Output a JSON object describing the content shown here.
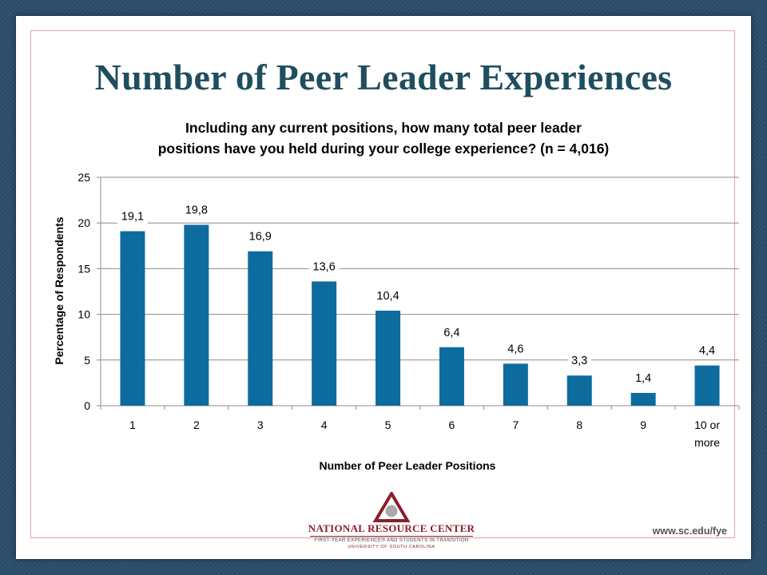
{
  "page": {
    "title": "Number of Peer Leader Experiences",
    "footer_url": "www.sc.edu/fye"
  },
  "logo": {
    "name": "NATIONAL RESOURCE CENTER",
    "subtitle": "FIRST-YEAR EXPERIENCE® AND STUDENTS IN TRANSITION",
    "institution": "UNIVERSITY OF SOUTH CAROLINA",
    "colors": {
      "triangle": "#8a1f2a",
      "circle": "#a9a9a9"
    }
  },
  "chart_data": {
    "type": "bar",
    "title_lines": [
      "Including any current positions, how many total peer leader",
      "positions have you held during your college experience? (n = 4,016)"
    ],
    "categories": [
      "1",
      "2",
      "3",
      "4",
      "5",
      "6",
      "7",
      "8",
      "9",
      "10 or more"
    ],
    "values": [
      19.1,
      19.8,
      16.9,
      13.6,
      10.4,
      6.4,
      4.6,
      3.3,
      1.4,
      4.4
    ],
    "data_labels": [
      "19,1",
      "19,8",
      "16,9",
      "13,6",
      "10,4",
      "6,4",
      "4,6",
      "3,3",
      "1,4",
      "4,4"
    ],
    "xlabel": "Number of Peer Leader Positions",
    "ylabel": "Percentage of Respondents",
    "ylim": [
      0,
      25
    ],
    "yticks": [
      0,
      5,
      10,
      15,
      20,
      25
    ],
    "grid": true,
    "legend": "none",
    "bar_color": "#0e6b9e"
  }
}
